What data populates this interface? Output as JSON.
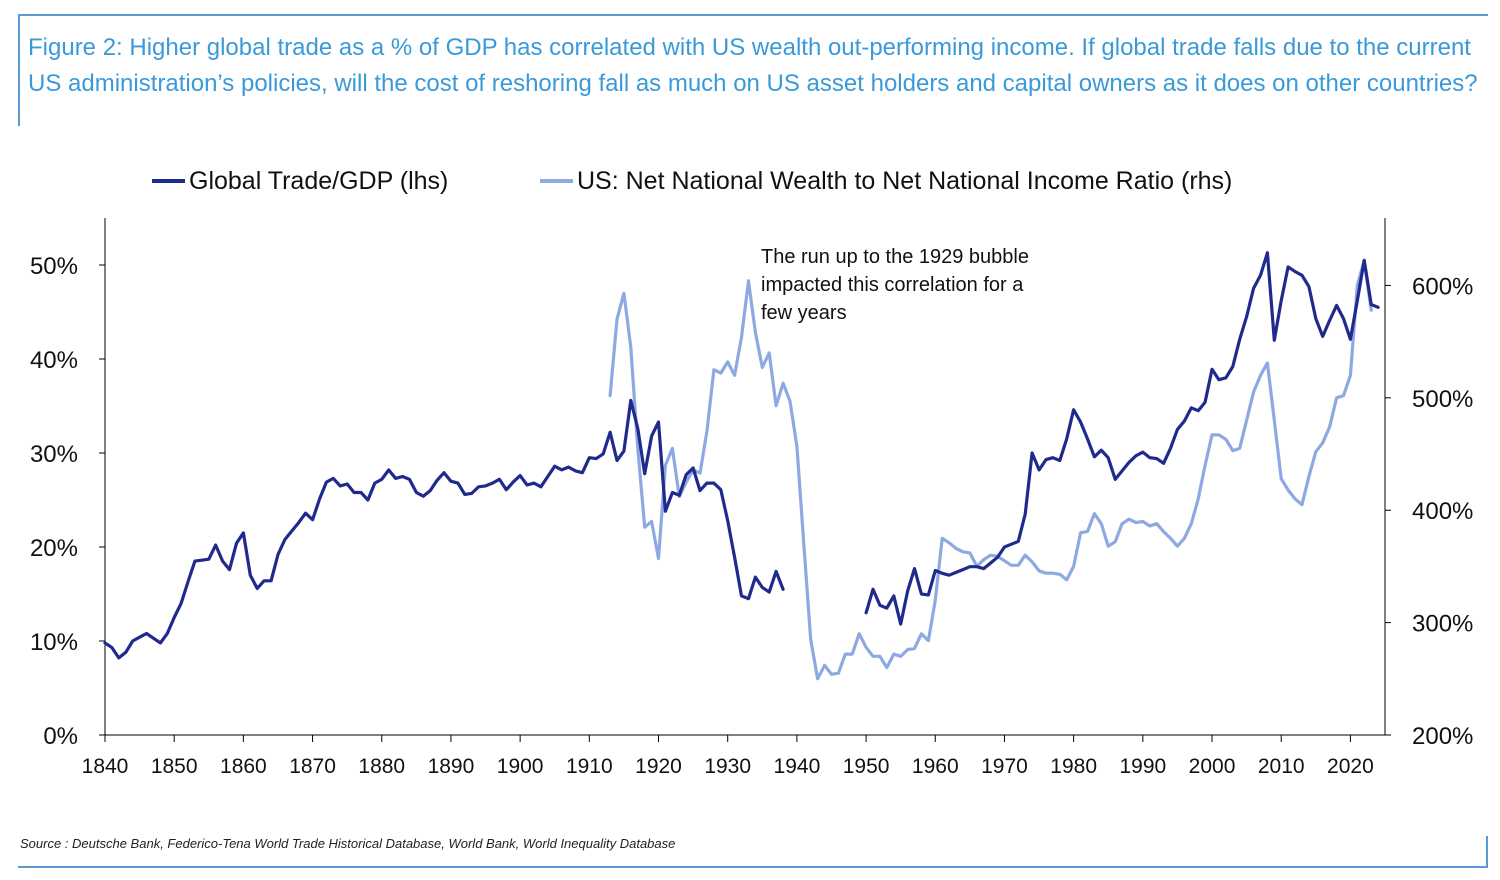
{
  "caption": "Figure 2: Higher global trade as a % of GDP has correlated with US wealth out-performing income. If global trade falls due to the current US administration’s policies, will the cost of reshoring fall as much on US asset holders and capital owners as it does on other countries?",
  "source": "Source : Deutsche Bank, Federico-Tena World Trade Historical Database, World Bank, World Inequality Database",
  "colors": {
    "accent": "#3a9ad9",
    "frame": "#5b9bd5",
    "dark_series": "#1f2a8c",
    "light_series": "#8ea9e2"
  },
  "chart_data": {
    "type": "line",
    "title": "",
    "annotation": [
      "The run up to the 1929 bubble",
      "impacted this correlation for a",
      "few years"
    ],
    "x_ticks": [
      "1840",
      "1850",
      "1860",
      "1870",
      "1880",
      "1890",
      "1900",
      "1910",
      "1920",
      "1930",
      "1940",
      "1950",
      "1960",
      "1970",
      "1980",
      "1990",
      "2000",
      "2010",
      "2020"
    ],
    "xlim": [
      1840,
      2025
    ],
    "y_left_ticks": [
      "0%",
      "10%",
      "20%",
      "30%",
      "40%",
      "50%"
    ],
    "y_left_lim": [
      0,
      55
    ],
    "y_right_ticks": [
      "200%",
      "300%",
      "400%",
      "500%",
      "600%"
    ],
    "y_right_lim": [
      200,
      660
    ],
    "grid": false,
    "legend_position": "top-center",
    "series": [
      {
        "name": "Global Trade/GDP (lhs)",
        "axis": "left",
        "segments": [
          {
            "x": [
              1840,
              1841,
              1842,
              1843,
              1844,
              1845,
              1846,
              1847,
              1848,
              1849,
              1850,
              1851,
              1852,
              1853,
              1854,
              1855,
              1856,
              1857,
              1858,
              1859,
              1860,
              1861,
              1862,
              1863,
              1864,
              1865,
              1866,
              1867,
              1868,
              1869,
              1870,
              1871,
              1872,
              1873,
              1874,
              1875,
              1876,
              1877,
              1878,
              1879,
              1880,
              1881,
              1882,
              1883,
              1884,
              1885,
              1886,
              1887,
              1888,
              1889,
              1890,
              1891,
              1892,
              1893,
              1894,
              1895,
              1896,
              1897,
              1898,
              1899,
              1900,
              1901,
              1902,
              1903,
              1904,
              1905,
              1906,
              1907,
              1908,
              1909,
              1910,
              1911,
              1912,
              1913,
              1914,
              1915,
              1916,
              1917,
              1918,
              1919,
              1920,
              1921,
              1922,
              1923,
              1924,
              1925,
              1926,
              1927,
              1928,
              1929,
              1930,
              1931,
              1932,
              1933,
              1934,
              1935,
              1936,
              1937,
              1938
            ],
            "y": [
              9.8,
              9.3,
              8.2,
              8.8,
              10.0,
              10.4,
              10.8,
              10.3,
              9.8,
              10.8,
              12.5,
              14.0,
              16.3,
              18.5,
              18.6,
              18.7,
              20.2,
              18.5,
              17.6,
              20.4,
              21.5,
              17.0,
              15.6,
              16.4,
              16.4,
              19.2,
              20.8,
              21.7,
              22.6,
              23.6,
              22.9,
              25.1,
              26.9,
              27.3,
              26.5,
              26.7,
              25.8,
              25.8,
              25.0,
              26.8,
              27.2,
              28.2,
              27.3,
              27.5,
              27.2,
              25.8,
              25.4,
              26.0,
              27.1,
              27.9,
              27.0,
              26.8,
              25.6,
              25.7,
              26.4,
              26.5,
              26.8,
              27.2,
              26.1,
              26.9,
              27.6,
              26.6,
              26.8,
              26.4,
              27.5,
              28.6,
              28.2,
              28.5,
              28.1,
              27.9,
              29.5,
              29.4,
              29.9,
              32.2,
              29.2,
              30.2,
              35.6,
              32.6,
              27.8,
              31.8,
              33.3,
              23.8,
              25.8,
              25.5,
              27.7,
              28.4,
              26.0,
              26.8,
              26.8,
              26.1,
              22.8,
              18.9,
              14.8,
              14.5,
              16.8,
              15.7,
              15.2,
              17.4,
              15.5
            ]
          },
          {
            "x": [
              1950,
              1951,
              1952,
              1953,
              1954,
              1955,
              1956,
              1957,
              1958,
              1959,
              1960,
              1961,
              1962,
              1963,
              1964,
              1965,
              1966,
              1967,
              1968,
              1969,
              1970,
              1971,
              1972,
              1973,
              1974,
              1975,
              1976,
              1977,
              1978,
              1979,
              1980,
              1981,
              1982,
              1983,
              1984,
              1985,
              1986,
              1987,
              1988,
              1989,
              1990,
              1991,
              1992,
              1993,
              1994,
              1995,
              1996,
              1997,
              1998,
              1999,
              2000,
              2001,
              2002,
              2003,
              2004,
              2005,
              2006,
              2007,
              2008,
              2009,
              2010,
              2011,
              2012,
              2013,
              2014,
              2015,
              2016,
              2017,
              2018,
              2019,
              2020,
              2021,
              2022,
              2023,
              2024
            ],
            "y": [
              13.0,
              15.5,
              13.8,
              13.5,
              14.8,
              11.8,
              15.3,
              17.7,
              15.0,
              14.9,
              17.5,
              17.2,
              17.0,
              17.3,
              17.6,
              17.9,
              17.9,
              17.7,
              18.3,
              18.9,
              20.0,
              20.3,
              20.6,
              23.5,
              30.0,
              28.2,
              29.3,
              29.5,
              29.2,
              31.5,
              34.6,
              33.3,
              31.5,
              29.6,
              30.3,
              29.5,
              27.2,
              28.1,
              29.0,
              29.7,
              30.1,
              29.5,
              29.4,
              28.9,
              30.5,
              32.5,
              33.4,
              34.8,
              34.5,
              35.4,
              38.9,
              37.8,
              38.0,
              39.2,
              42.1,
              44.5,
              47.5,
              48.9,
              51.3,
              42.0,
              46.2,
              49.8,
              49.3,
              48.9,
              47.7,
              44.3,
              42.4,
              44.1,
              45.7,
              44.3,
              42.1,
              46.2,
              50.5,
              45.8,
              45.5
            ]
          }
        ]
      },
      {
        "name": "US: Net National Wealth to Net National Income Ratio (rhs)",
        "axis": "right",
        "segments": [
          {
            "x": [
              1913,
              1914,
              1915,
              1916,
              1917,
              1918,
              1919,
              1920,
              1921,
              1922,
              1923,
              1924,
              1925,
              1926,
              1927,
              1928,
              1929,
              1930,
              1931,
              1932,
              1933,
              1934,
              1935,
              1936,
              1937,
              1938,
              1939,
              1940,
              1941,
              1942,
              1943,
              1944,
              1945,
              1946,
              1947,
              1948,
              1949,
              1950,
              1951,
              1952,
              1953,
              1954,
              1955,
              1956,
              1957,
              1958,
              1959,
              1960,
              1961,
              1962,
              1963,
              1964,
              1965,
              1966,
              1967,
              1968,
              1969,
              1970,
              1971,
              1972,
              1973,
              1974,
              1975,
              1976,
              1977,
              1978,
              1979,
              1980,
              1981,
              1982,
              1983,
              1984,
              1985,
              1986,
              1987,
              1988,
              1989,
              1990,
              1991,
              1992,
              1993,
              1994,
              1995,
              1996,
              1997,
              1998,
              1999,
              2000,
              2001,
              2002,
              2003,
              2004,
              2005,
              2006,
              2007,
              2008,
              2009,
              2010,
              2011,
              2012,
              2013,
              2014,
              2015,
              2016,
              2017,
              2018,
              2019,
              2020,
              2021,
              2022,
              2023
            ],
            "y": [
              502,
              570,
              593,
              545,
              455,
              385,
              390,
              357,
              440,
              455,
              412,
              425,
              436,
              433,
              470,
              525,
              522,
              532,
              520,
              554,
              604,
              558,
              527,
              540,
              493,
              513,
              497,
              457,
              370,
              285,
              250,
              262,
              254,
              255,
              272,
              272,
              290,
              278,
              270,
              270,
              260,
              272,
              270,
              276,
              277,
              290,
              284,
              320,
              375,
              371,
              366,
              363,
              362,
              350,
              356,
              360,
              359,
              355,
              351,
              351,
              360,
              354,
              346,
              344,
              344,
              343,
              338,
              350,
              380,
              381,
              397,
              388,
              368,
              372,
              388,
              392,
              389,
              390,
              386,
              388,
              381,
              375,
              368,
              375,
              388,
              410,
              440,
              467,
              467,
              463,
              453,
              455,
              480,
              505,
              520,
              531,
              480,
              428,
              418,
              410,
              405,
              430,
              452,
              460,
              474,
              500,
              502,
              520,
              600,
              622,
              578
            ]
          }
        ]
      }
    ]
  }
}
